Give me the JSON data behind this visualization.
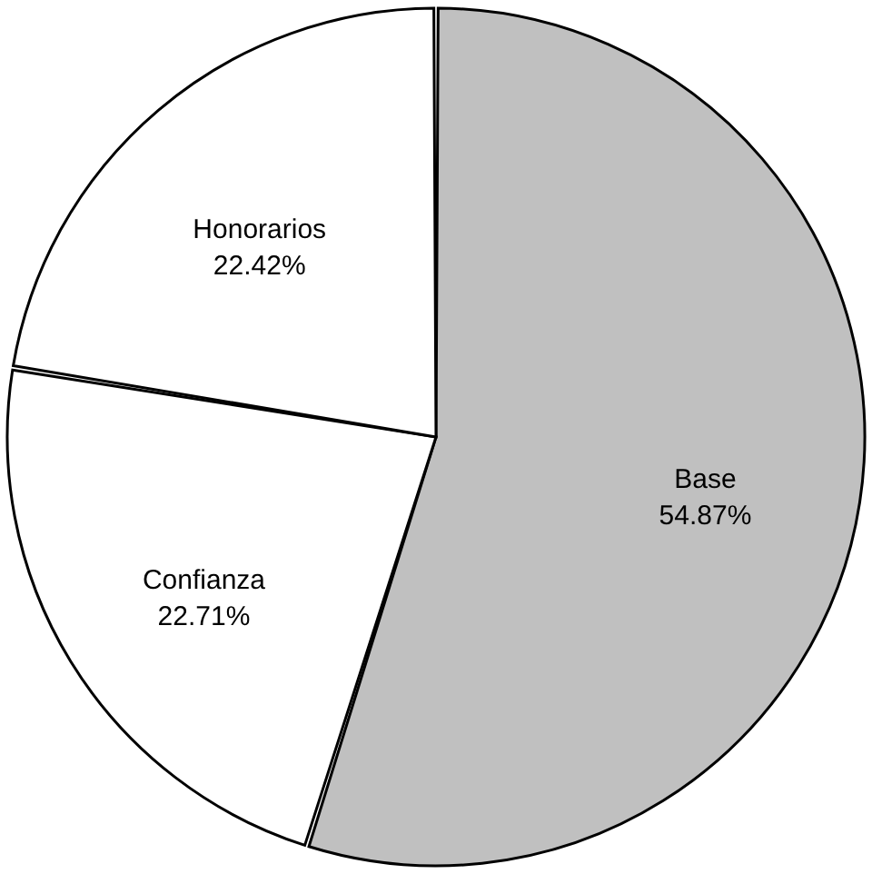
{
  "chart_data": {
    "type": "pie",
    "categories": [
      "Base",
      "Confianza",
      "Honorarios"
    ],
    "values": [
      54.87,
      22.71,
      22.42
    ],
    "colors": [
      "#c0c0c0",
      "#ffffff",
      "#ffffff"
    ],
    "value_labels": [
      "54.87%",
      "22.71%",
      "22.42%"
    ],
    "legend": false
  }
}
